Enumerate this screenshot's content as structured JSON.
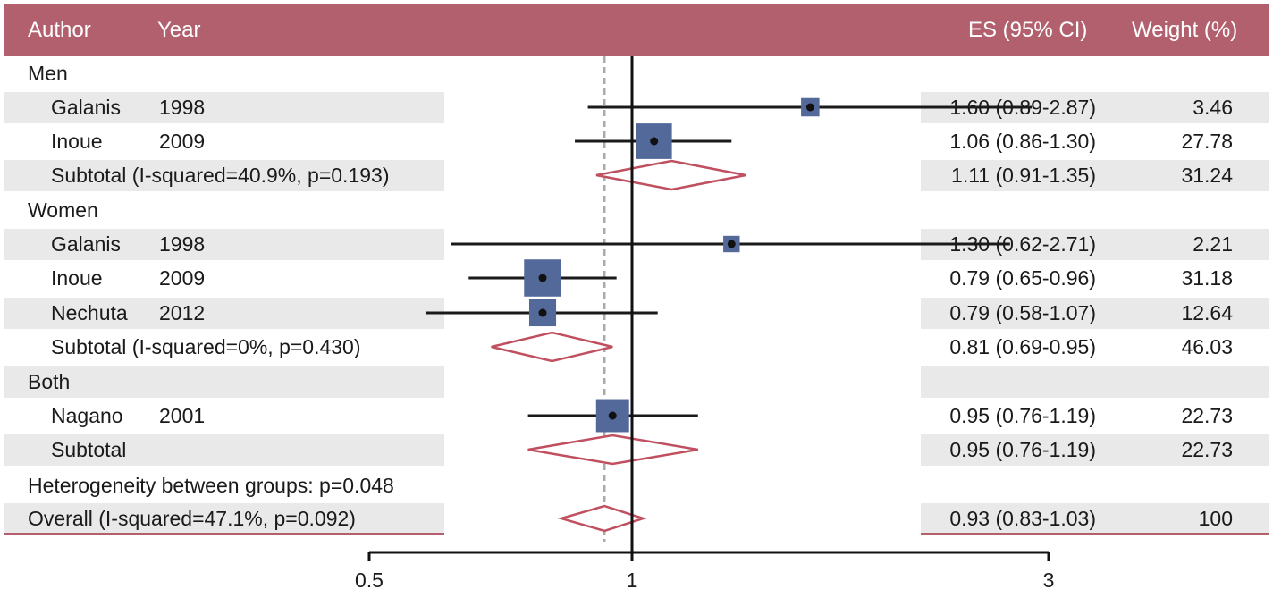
{
  "header": {
    "author": "Author",
    "year": "Year",
    "es": "ES (95% CI)",
    "weight": "Weight (%)"
  },
  "colors": {
    "header_bg": "#b25f6e",
    "square": "#53699a",
    "diamond": "#c0505f",
    "band": "#e9e9e9",
    "null_line": "#aaaaaa"
  },
  "chart_data": {
    "type": "forest",
    "x_scale": "log",
    "xlim": [
      0.5,
      3
    ],
    "xticks": [
      "0.5",
      "1",
      "3"
    ],
    "null_value": 1,
    "overall_reference": 0.93,
    "rows": [
      {
        "kind": "group",
        "label": "Men",
        "shaded": false
      },
      {
        "kind": "study",
        "author": "Galanis",
        "year": "1998",
        "es": 1.6,
        "lo": 0.89,
        "hi": 2.87,
        "ci_text": "1.60 (0.89-2.87)",
        "weight": "3.46",
        "shaded": true
      },
      {
        "kind": "study",
        "author": "Inoue",
        "year": "2009",
        "es": 1.06,
        "lo": 0.86,
        "hi": 1.3,
        "ci_text": "1.06 (0.86-1.30)",
        "weight": "27.78",
        "shaded": false
      },
      {
        "kind": "subtotal",
        "label": "Subtotal (I-squared=40.9%, p=0.193)",
        "es": 1.11,
        "lo": 0.91,
        "hi": 1.35,
        "ci_text": "1.11 (0.91-1.35)",
        "weight": "31.24",
        "shaded": true
      },
      {
        "kind": "group",
        "label": "Women",
        "shaded": false
      },
      {
        "kind": "study",
        "author": "Galanis",
        "year": "1998",
        "es": 1.3,
        "lo": 0.62,
        "hi": 2.71,
        "ci_text": "1.30 (0.62-2.71)",
        "weight": "2.21",
        "shaded": true
      },
      {
        "kind": "study",
        "author": "Inoue",
        "year": "2009",
        "es": 0.79,
        "lo": 0.65,
        "hi": 0.96,
        "ci_text": "0.79 (0.65-0.96)",
        "weight": "31.18",
        "shaded": false
      },
      {
        "kind": "study",
        "author": "Nechuta",
        "year": "2012",
        "es": 0.79,
        "lo": 0.58,
        "hi": 1.07,
        "ci_text": "0.79 (0.58-1.07)",
        "weight": "12.64",
        "shaded": true
      },
      {
        "kind": "subtotal",
        "label": "Subtotal (I-squared=0%, p=0.430)",
        "es": 0.81,
        "lo": 0.69,
        "hi": 0.95,
        "ci_text": "0.81 (0.69-0.95)",
        "weight": "46.03",
        "shaded": false
      },
      {
        "kind": "group",
        "label": "Both",
        "shaded": true
      },
      {
        "kind": "study",
        "author": "Nagano",
        "year": "2001",
        "es": 0.95,
        "lo": 0.76,
        "hi": 1.19,
        "ci_text": "0.95 (0.76-1.19)",
        "weight": "22.73",
        "shaded": false
      },
      {
        "kind": "subtotal",
        "label": "Subtotal",
        "es": 0.95,
        "lo": 0.76,
        "hi": 1.19,
        "ci_text": "0.95 (0.76-1.19)",
        "weight": "22.73",
        "shaded": true
      },
      {
        "kind": "note",
        "label": "Heterogeneity between groups: p=0.048",
        "shaded": false
      },
      {
        "kind": "overall",
        "label": "Overall (I-squared=47.1%, p=0.092)",
        "es": 0.93,
        "lo": 0.83,
        "hi": 1.03,
        "ci_text": "0.93 (0.83-1.03)",
        "weight": "100",
        "shaded": true
      }
    ]
  }
}
